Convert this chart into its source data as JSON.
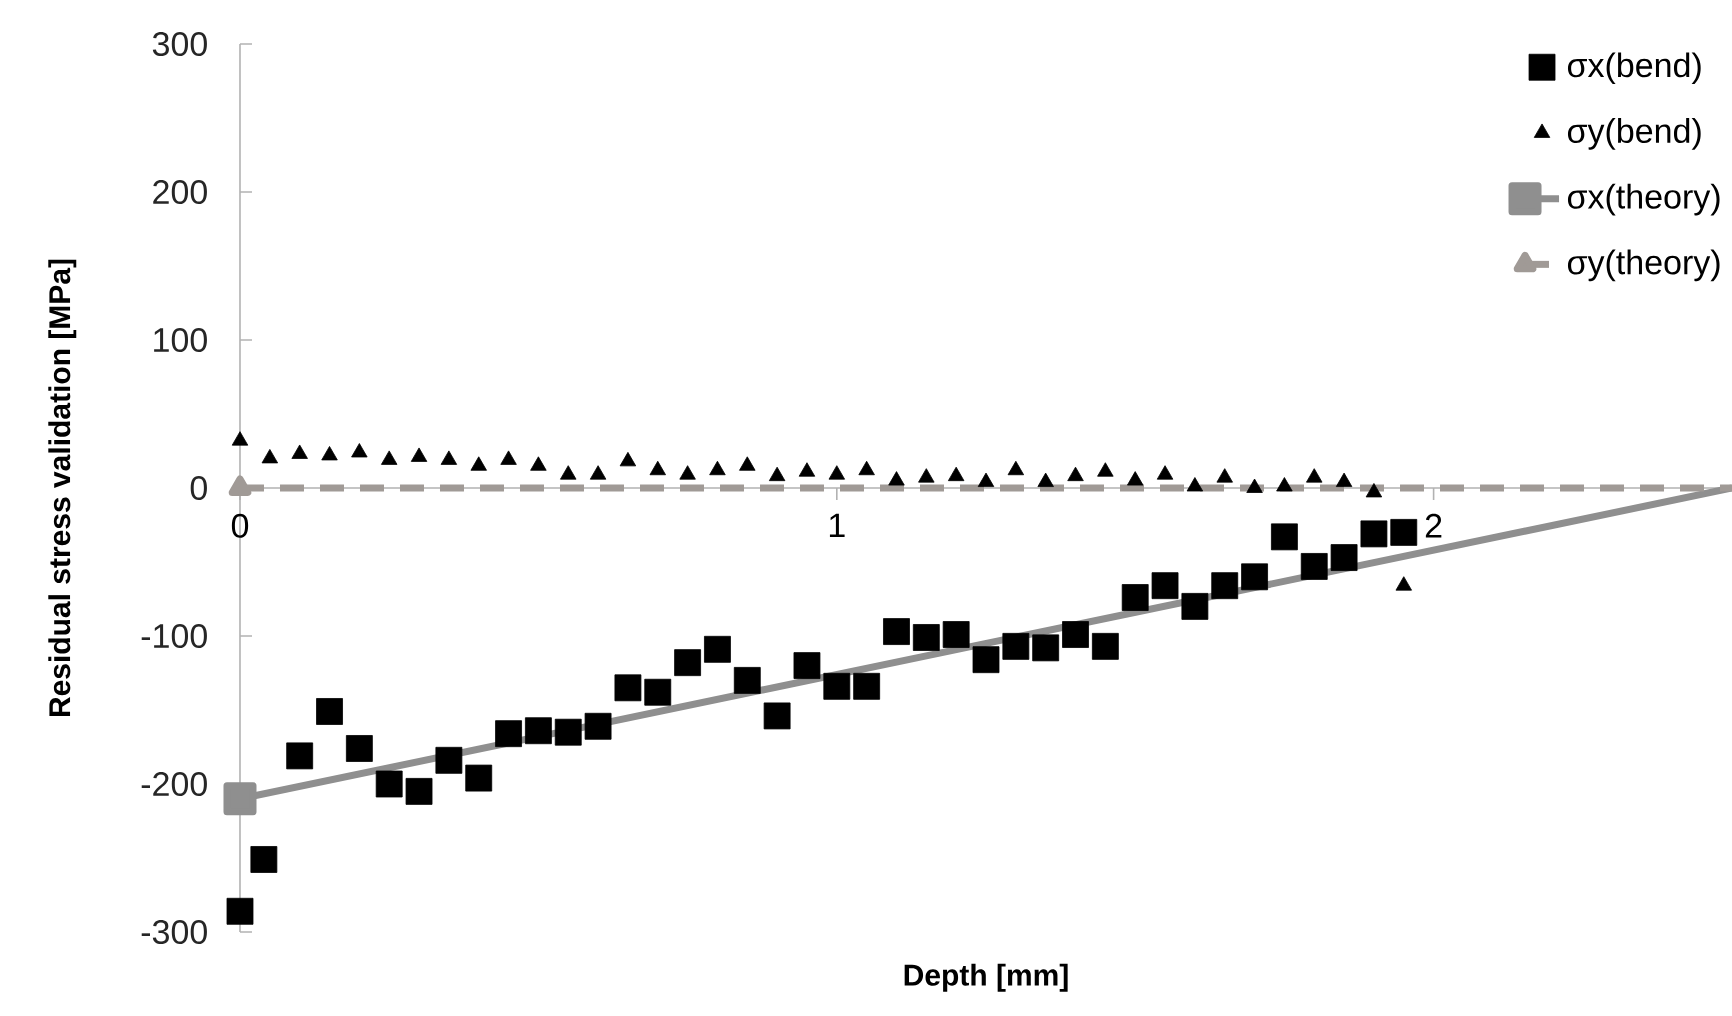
{
  "chart_data": {
    "type": "scatter",
    "xlabel": "Depth [mm]",
    "ylabel": "Residual stress validation [MPa]",
    "xlim": [
      0,
      2.5
    ],
    "ylim": [
      -300,
      300
    ],
    "xticks": [
      0,
      1,
      2
    ],
    "yticks": [
      -300,
      -200,
      -100,
      0,
      100,
      200,
      300
    ],
    "legend": "top right",
    "grid": false,
    "series": [
      {
        "name": "σx(bend)",
        "marker": "square",
        "color": "#000000",
        "x": [
          0,
          0.04,
          0.1,
          0.15,
          0.2,
          0.25,
          0.3,
          0.35,
          0.4,
          0.45,
          0.5,
          0.55,
          0.6,
          0.65,
          0.7,
          0.75,
          0.8,
          0.85,
          0.9,
          0.95,
          1.0,
          1.05,
          1.1,
          1.15,
          1.2,
          1.25,
          1.3,
          1.35,
          1.4,
          1.45,
          1.5,
          1.55,
          1.6,
          1.65,
          1.7,
          1.75,
          1.8,
          1.85,
          1.9,
          1.95
        ],
        "values": [
          -286,
          -251,
          -181,
          -151,
          -176,
          -200,
          -205,
          -184,
          -196,
          -166,
          -164,
          -165,
          -161,
          -135,
          -138,
          -118,
          -109,
          -130,
          -154,
          -120,
          -134,
          -134,
          -97,
          -101,
          -99,
          -116,
          -107,
          -108,
          -99,
          -107,
          -74,
          -66,
          -80,
          -66,
          -60,
          -33,
          -53,
          -47,
          -31,
          -30
        ]
      },
      {
        "name": "σy(bend)",
        "marker": "triangle",
        "color": "#000000",
        "x": [
          0,
          0.05,
          0.1,
          0.15,
          0.2,
          0.25,
          0.3,
          0.35,
          0.4,
          0.45,
          0.5,
          0.55,
          0.6,
          0.65,
          0.7,
          0.75,
          0.8,
          0.85,
          0.9,
          0.95,
          1.0,
          1.05,
          1.1,
          1.15,
          1.2,
          1.25,
          1.3,
          1.35,
          1.4,
          1.45,
          1.5,
          1.55,
          1.6,
          1.65,
          1.7,
          1.75,
          1.8,
          1.85,
          1.9,
          1.95
        ],
        "values": [
          32,
          20,
          23,
          22,
          24,
          19,
          21,
          19,
          15,
          19,
          15,
          9,
          9,
          18,
          12,
          9,
          12,
          15,
          8,
          11,
          9,
          12,
          5,
          7,
          8,
          4,
          12,
          4,
          8,
          11,
          5,
          9,
          1,
          7,
          0,
          1,
          7,
          4,
          -3,
          -66
        ]
      },
      {
        "name": "σx(theory)",
        "type": "line",
        "marker": "square",
        "line_style": "solid",
        "color": "#8f8f8f",
        "x": [
          0,
          2.5
        ],
        "values": [
          -210,
          0
        ]
      },
      {
        "name": "σy(theory)",
        "type": "line",
        "marker": "triangle",
        "line_style": "dashed",
        "color": "#a09a96",
        "x": [
          0,
          2.5
        ],
        "values": [
          0,
          0
        ]
      }
    ]
  }
}
